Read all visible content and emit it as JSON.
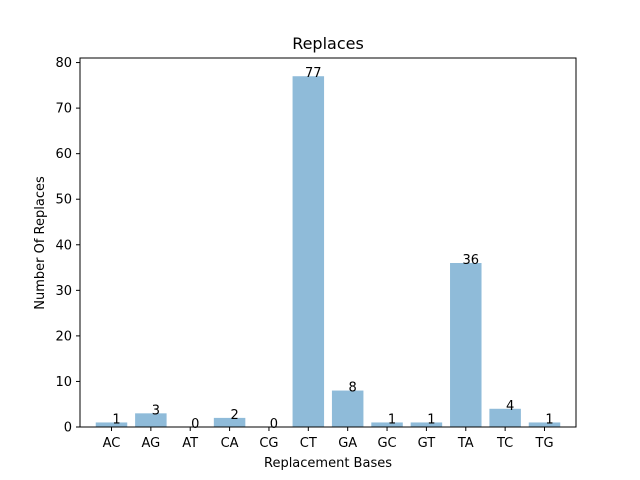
{
  "chart_data": {
    "type": "bar",
    "title": "Replaces",
    "xlabel": "Replacement Bases",
    "ylabel": "Number Of Replaces",
    "categories": [
      "AC",
      "AG",
      "AT",
      "CA",
      "CG",
      "CT",
      "GA",
      "GC",
      "GT",
      "TA",
      "TC",
      "TG"
    ],
    "values": [
      1,
      3,
      0,
      2,
      0,
      77,
      8,
      1,
      1,
      36,
      4,
      1
    ],
    "ylim": [
      0,
      81
    ],
    "yticks": [
      0,
      10,
      20,
      30,
      40,
      50,
      60,
      70,
      80
    ],
    "grid": false,
    "legend": "none",
    "bar_color": "#8fbbd9"
  }
}
